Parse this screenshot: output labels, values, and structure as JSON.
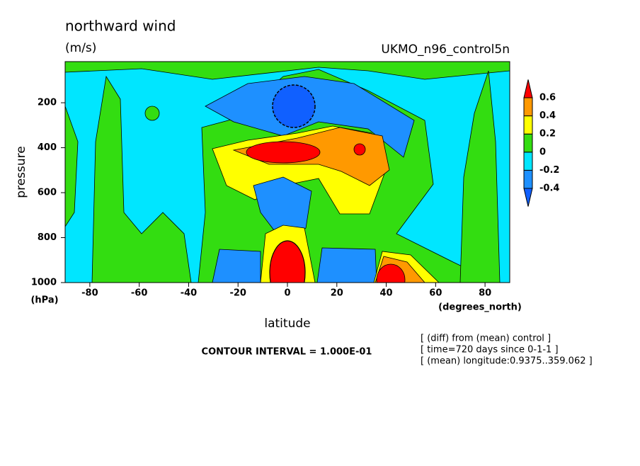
{
  "chart_data": {
    "type": "contour",
    "title": "northward wind",
    "units": "(m/s)",
    "dataset": "UKMO_n96_control5n",
    "x_label": "latitude",
    "x_units": "(degrees_north)",
    "y_label": "pressure",
    "y_units": "(hPa)",
    "xlim": [
      -90,
      90
    ],
    "xticks": [
      -80,
      -60,
      -40,
      -20,
      0,
      20,
      40,
      60,
      80
    ],
    "ylim": [
      1000,
      17
    ],
    "yticks": [
      200,
      400,
      600,
      800,
      1000
    ],
    "contour_interval": "CONTOUR INTERVAL = 1.000E-01",
    "notes": [
      "[ (diff) from (mean) control ]",
      "[ time=720 days since 0-1-1 ]",
      "[ (mean) longitude:0.9375..359.062 ]"
    ],
    "levels": [
      -0.4,
      -0.2,
      0,
      0.2,
      0.4,
      0.6
    ],
    "level_labels": [
      "-0.4",
      "-0.2",
      "0",
      "0.2",
      "0.4",
      "0.6"
    ],
    "colors": [
      "#1060ff",
      "#1e90ff",
      "#00e6ff",
      "#33dd11",
      "#ffff00",
      "#ff9900",
      "#ff0000"
    ]
  }
}
